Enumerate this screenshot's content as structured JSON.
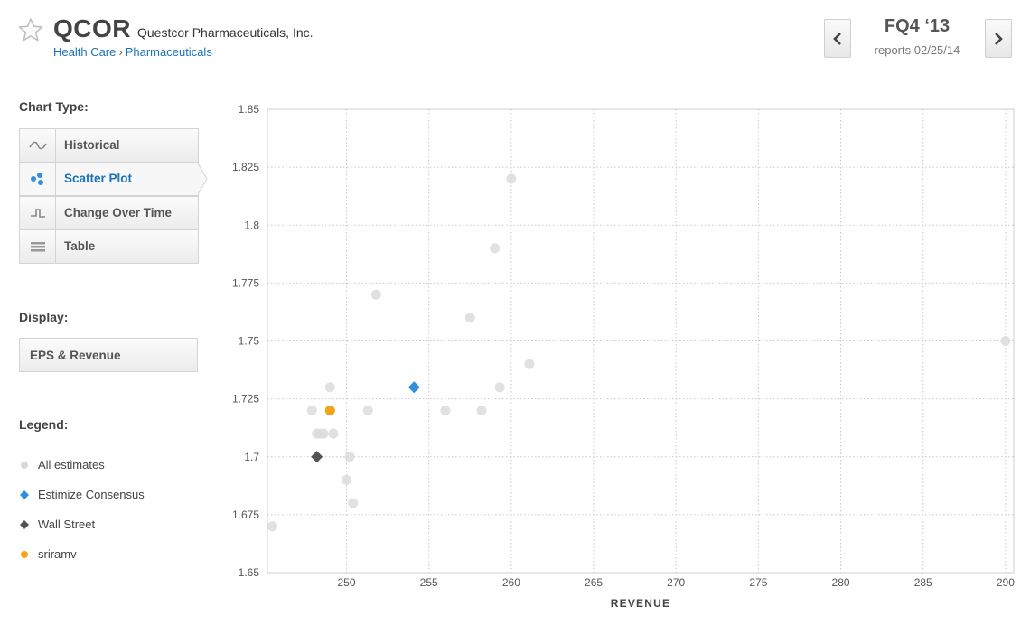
{
  "header": {
    "ticker": "QCOR",
    "company": "Questcor Pharmaceuticals, Inc.",
    "sector": "Health Care",
    "breadcrumb_sep": "›",
    "industry": "Pharmaceuticals",
    "quarter": "FQ4 ‘13",
    "reports": "reports 02/25/14",
    "star_icon": "star-outline-icon"
  },
  "sidebar": {
    "chart_type_label": "Chart Type:",
    "chart_types": [
      {
        "label": "Historical",
        "icon": "wave-icon",
        "active": false
      },
      {
        "label": "Scatter Plot",
        "icon": "scatter-dots-icon",
        "active": true
      },
      {
        "label": "Change Over Time",
        "icon": "step-line-icon",
        "active": false
      },
      {
        "label": "Table",
        "icon": "table-lines-icon",
        "active": false
      }
    ],
    "display_label": "Display:",
    "display_value": "EPS & Revenue",
    "legend_label": "Legend:",
    "legend": [
      {
        "label": "All estimates",
        "color": "#d9d9d9",
        "shape": "circle"
      },
      {
        "label": "Estimize Consensus",
        "color": "#2f8fdf",
        "shape": "diamond"
      },
      {
        "label": "Wall Street",
        "color": "#555555",
        "shape": "diamond"
      },
      {
        "label": "sriramv",
        "color": "#f5a31a",
        "shape": "circle"
      }
    ]
  },
  "chart_data": {
    "type": "scatter",
    "xlabel": "REVENUE",
    "ylabel": "",
    "xlim": [
      245.2,
      290.5
    ],
    "ylim": [
      1.65,
      1.85
    ],
    "xticks": [
      250,
      255,
      260,
      265,
      270,
      275,
      280,
      285,
      290
    ],
    "yticks": [
      1.65,
      1.675,
      1.7,
      1.725,
      1.75,
      1.775,
      1.8,
      1.825,
      1.85
    ],
    "grid": true,
    "series": [
      {
        "name": "All estimates",
        "color": "#dcdcdc",
        "shape": "circle",
        "points": [
          {
            "x": 260.0,
            "y": 1.82
          },
          {
            "x": 259.0,
            "y": 1.79
          },
          {
            "x": 251.8,
            "y": 1.77
          },
          {
            "x": 257.5,
            "y": 1.76
          },
          {
            "x": 290.0,
            "y": 1.75
          },
          {
            "x": 261.1,
            "y": 1.74
          },
          {
            "x": 249.0,
            "y": 1.73
          },
          {
            "x": 259.3,
            "y": 1.73
          },
          {
            "x": 247.9,
            "y": 1.72
          },
          {
            "x": 251.3,
            "y": 1.72
          },
          {
            "x": 256.0,
            "y": 1.72
          },
          {
            "x": 258.2,
            "y": 1.72
          },
          {
            "x": 248.2,
            "y": 1.71
          },
          {
            "x": 248.4,
            "y": 1.71
          },
          {
            "x": 248.6,
            "y": 1.71
          },
          {
            "x": 249.2,
            "y": 1.71
          },
          {
            "x": 250.2,
            "y": 1.7
          },
          {
            "x": 250.0,
            "y": 1.69
          },
          {
            "x": 250.4,
            "y": 1.68
          },
          {
            "x": 245.5,
            "y": 1.67
          }
        ]
      },
      {
        "name": "Estimize Consensus",
        "color": "#2f8fdf",
        "shape": "diamond",
        "points": [
          {
            "x": 254.1,
            "y": 1.73
          }
        ]
      },
      {
        "name": "Wall Street",
        "color": "#555555",
        "shape": "diamond",
        "points": [
          {
            "x": 248.2,
            "y": 1.7
          }
        ]
      },
      {
        "name": "sriramv",
        "color": "#f5a31a",
        "shape": "circle",
        "points": [
          {
            "x": 249.0,
            "y": 1.72
          }
        ]
      }
    ]
  }
}
